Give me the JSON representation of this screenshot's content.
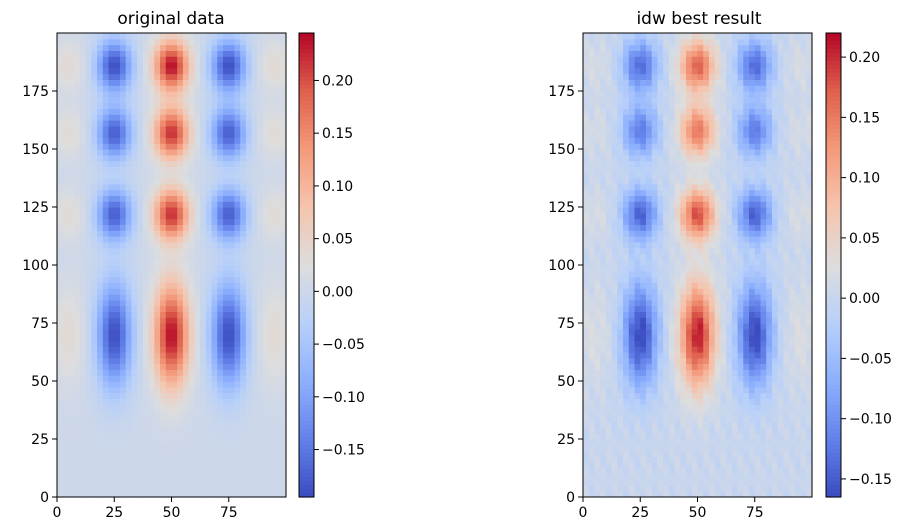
{
  "chart_data": [
    {
      "type": "heatmap",
      "title": "original data",
      "colormap": "coolwarm",
      "x_range": [
        0,
        100
      ],
      "y_range": [
        0,
        200
      ],
      "x_ticks": [
        "0",
        "25",
        "50",
        "75"
      ],
      "y_ticks": [
        "0",
        "25",
        "50",
        "75",
        "100",
        "125",
        "150",
        "175"
      ],
      "colorbar": {
        "range": [
          -0.195,
          0.245
        ],
        "ticks": [
          "0.20",
          "0.15",
          "0.10",
          "0.05",
          "0.00",
          "−0.05",
          "−0.10",
          "−0.15"
        ],
        "tick_values": [
          0.2,
          0.15,
          0.1,
          0.05,
          0.0,
          -0.05,
          -0.1,
          -0.15
        ]
      },
      "field": {
        "columns": [
          {
            "x": 25,
            "sign": -1
          },
          {
            "x": 50,
            "sign": 1
          },
          {
            "x": 75,
            "sign": -1
          },
          {
            "x": 5,
            "sign": 0.15
          },
          {
            "x": 95,
            "sign": 0.15
          }
        ],
        "peaks": [
          {
            "y": 186,
            "amplitude": 0.24
          },
          {
            "y": 157,
            "amplitude": 0.22
          },
          {
            "y": 122,
            "amplitude": 0.22
          },
          {
            "y": 70,
            "amplitude": 0.24
          }
        ]
      }
    },
    {
      "type": "heatmap",
      "title": "idw best result",
      "colormap": "coolwarm",
      "x_range": [
        0,
        100
      ],
      "y_range": [
        0,
        200
      ],
      "x_ticks": [
        "0",
        "25",
        "50",
        "75"
      ],
      "y_ticks": [
        "0",
        "25",
        "50",
        "75",
        "100",
        "125",
        "150",
        "175"
      ],
      "colorbar": {
        "range": [
          -0.165,
          0.22
        ],
        "ticks": [
          "0.20",
          "0.15",
          "0.10",
          "0.05",
          "0.00",
          "−0.05",
          "−0.10",
          "−0.15"
        ],
        "tick_values": [
          0.2,
          0.15,
          0.1,
          0.05,
          0.0,
          -0.05,
          -0.1,
          -0.15
        ]
      },
      "field": {
        "columns": [
          {
            "x": 25,
            "sign": -1
          },
          {
            "x": 50,
            "sign": 1
          },
          {
            "x": 75,
            "sign": -1
          },
          {
            "x": 5,
            "sign": 0.1
          },
          {
            "x": 95,
            "sign": 0.1
          }
        ],
        "peaks": [
          {
            "y": 186,
            "amplitude": 0.17
          },
          {
            "y": 158,
            "amplitude": 0.15
          },
          {
            "y": 122,
            "amplitude": 0.18
          },
          {
            "y": 70,
            "amplitude": 0.21
          }
        ]
      }
    }
  ]
}
